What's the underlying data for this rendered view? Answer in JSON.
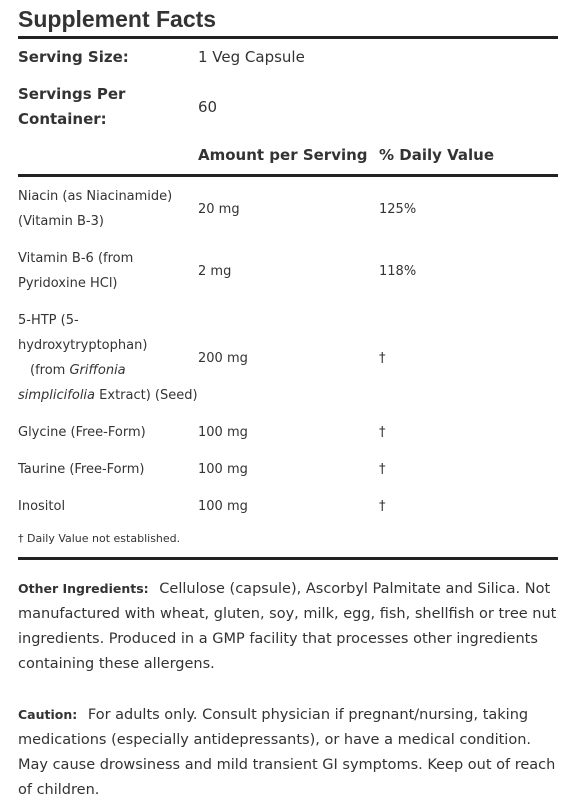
{
  "title": "Supplement Facts",
  "serving": [
    {
      "label": "Serving Size:",
      "value": "1 Veg Capsule"
    },
    {
      "label": "Servings Per Container:",
      "value": "60"
    }
  ],
  "table": {
    "header": [
      "Amount per Serving",
      "% Daily Value"
    ],
    "rows": [
      {
        "name": "Niacin (as Niacinamide) (Vitamin B-3)",
        "amount": "20 mg",
        "dv": "125%"
      },
      {
        "name": "Vitamin B-6 (from Pyridoxine HCl)",
        "amount": "2 mg",
        "dv": "118%"
      },
      {
        "name_parts": [
          "5-HTP (5-hydroxytryptophan)",
          "(from",
          "Griffonia simplicifolia",
          "Extract) (Seed)"
        ],
        "amount": "200 mg",
        "dv": "†"
      },
      {
        "name": "Glycine (Free-Form)",
        "amount": "100 mg",
        "dv": "†"
      },
      {
        "name": "Taurine (Free-Form)",
        "amount": "100 mg",
        "dv": "†"
      },
      {
        "name": "Inositol",
        "amount": "100 mg",
        "dv": "†"
      }
    ],
    "footnote": "† Daily Value not established."
  },
  "other_ingredients": {
    "label": "Other Ingredients:",
    "text": "Cellulose (capsule), Ascorbyl Palmitate and Silica. Not manufactured with wheat, gluten, soy, milk, egg, fish, shellfish or tree nut ingredients. Produced in a GMP facility that processes other ingredients containing these allergens."
  },
  "caution": {
    "label": "Caution:",
    "text": "For adults only. Consult physician if pregnant/nursing, taking medications (especially antidepressants), or have a medical condition. May cause drowsiness and mild transient GI symptoms. Keep out of reach of children."
  }
}
